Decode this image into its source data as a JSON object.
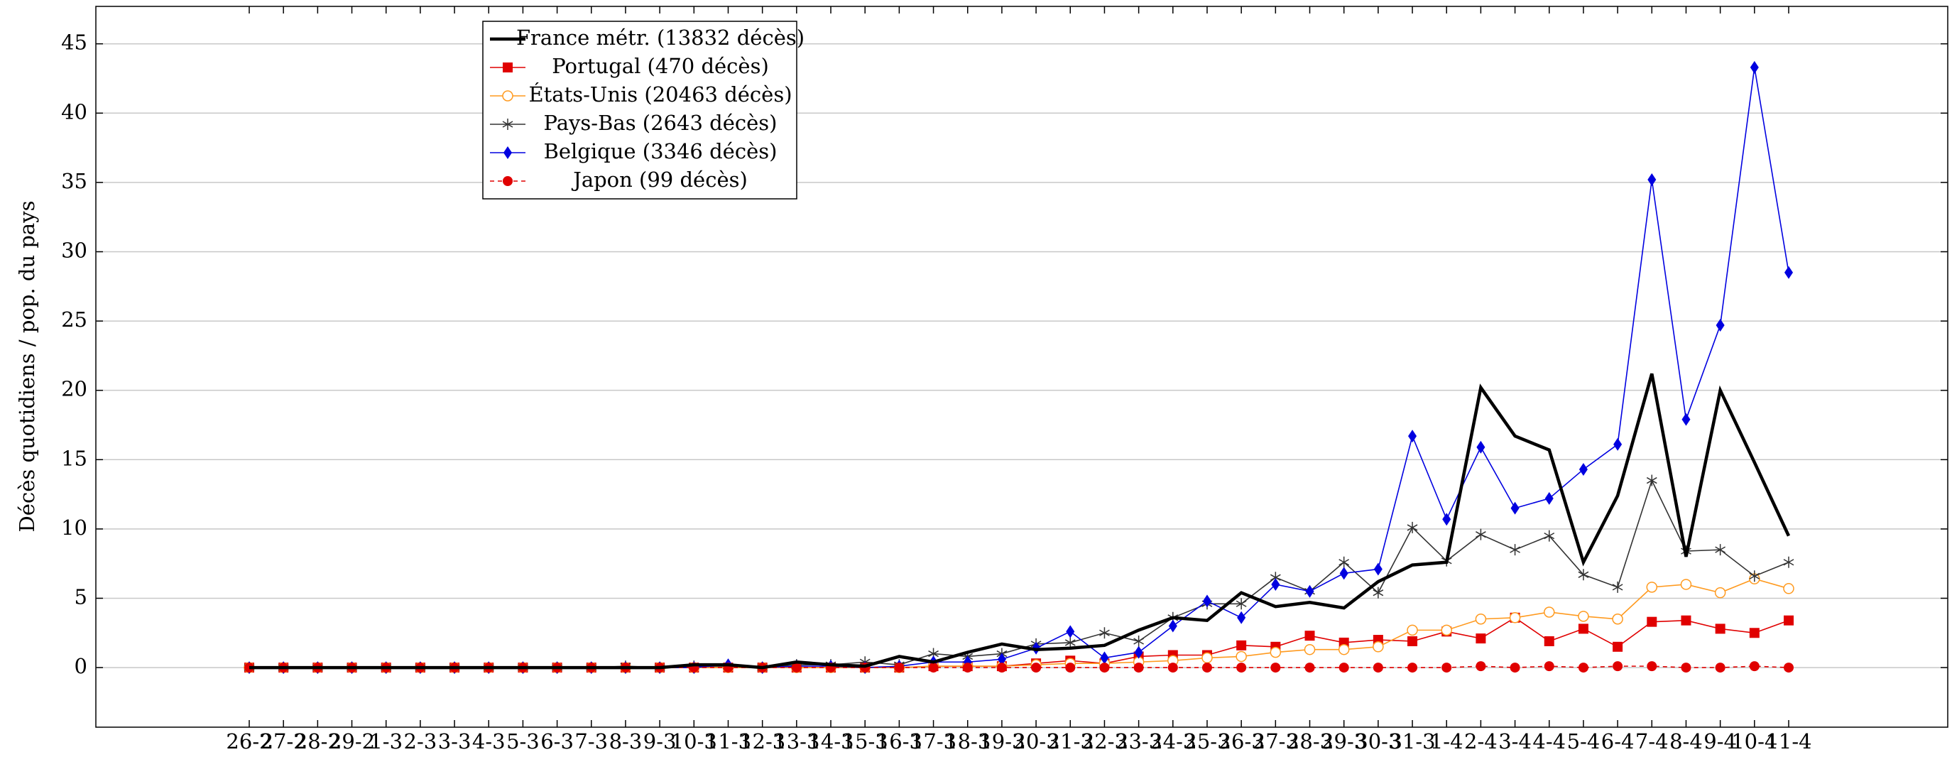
{
  "chart_data": {
    "type": "line",
    "y_label": "Décès quotidiens / pop. du pays",
    "categories": [
      "26-2",
      "27-2",
      "28-2",
      "29-2",
      "1-3",
      "2-3",
      "3-3",
      "4-3",
      "5-3",
      "6-3",
      "7-3",
      "8-3",
      "9-3",
      "10-3",
      "11-3",
      "12-3",
      "13-3",
      "14-3",
      "15-3",
      "16-3",
      "17-3",
      "18-3",
      "19-3",
      "20-3",
      "21-3",
      "22-3",
      "23-3",
      "24-3",
      "25-3",
      "26-3",
      "27-3",
      "28-3",
      "29-3",
      "30-3",
      "31-3",
      "1-4",
      "2-4",
      "3-4",
      "4-4",
      "5-4",
      "6-4",
      "7-4",
      "8-4",
      "9-4",
      "10-4",
      "11-4"
    ],
    "ylim": [
      -4.3,
      47.7
    ],
    "yticks": [
      0,
      5,
      10,
      15,
      20,
      25,
      30,
      35,
      40,
      45
    ],
    "grid": true,
    "legend": "upper-left",
    "series": [
      {
        "name": "France métr. (13832 décès)",
        "color": "#000000",
        "marker": "none",
        "values": [
          0,
          0,
          0,
          0,
          0,
          0,
          0,
          0,
          0,
          0,
          0,
          0,
          0,
          0.2,
          0.2,
          0,
          0.4,
          0.2,
          0.1,
          0.8,
          0.4,
          1.1,
          1.7,
          1.3,
          1.4,
          1.6,
          2.7,
          3.6,
          3.4,
          5.4,
          4.4,
          4.7,
          4.3,
          6.2,
          7.4,
          7.6,
          20.2,
          16.7,
          15.7,
          7.6,
          12.4,
          21.2,
          8.0,
          20.0,
          14.8,
          9.5
        ]
      },
      {
        "name": "Portugal (470 décès)",
        "color": "#e00000",
        "marker": "square",
        "values": [
          0,
          0,
          0,
          0,
          0,
          0,
          0,
          0,
          0,
          0,
          0,
          0,
          0,
          0,
          0,
          0,
          0,
          0,
          0,
          0,
          0.1,
          0.1,
          0.1,
          0.3,
          0.5,
          0.3,
          0.8,
          0.9,
          0.9,
          1.6,
          1.5,
          2.3,
          1.8,
          2.0,
          1.9,
          2.6,
          2.1,
          3.6,
          1.9,
          2.8,
          1.5,
          3.3,
          3.4,
          2.8,
          2.5,
          3.4
        ]
      },
      {
        "name": "États-Unis (20463 décès)",
        "color": "#ff9a1f",
        "marker": "circle-open",
        "values": [
          0,
          0,
          0,
          0,
          0,
          0,
          0,
          0,
          0,
          0,
          0,
          0,
          0,
          0,
          0,
          0,
          0,
          0,
          0,
          0,
          0.1,
          0.1,
          0.1,
          0.2,
          0.3,
          0.3,
          0.4,
          0.5,
          0.7,
          0.8,
          1.1,
          1.3,
          1.3,
          1.5,
          2.7,
          2.7,
          3.5,
          3.6,
          4.0,
          3.7,
          3.5,
          5.8,
          6.0,
          5.4,
          6.4,
          5.7
        ]
      },
      {
        "name": "Pays-Bas (2643 décès)",
        "color": "#333333",
        "marker": "star",
        "values": [
          0,
          0,
          0,
          0,
          0,
          0,
          0,
          0,
          0,
          0,
          0,
          0.1,
          0,
          0.1,
          0.1,
          0,
          0.2,
          0.2,
          0.4,
          0.2,
          1.0,
          0.8,
          1.0,
          1.7,
          1.8,
          2.5,
          1.9,
          3.6,
          4.6,
          4.6,
          6.5,
          5.5,
          7.6,
          5.4,
          10.1,
          7.7,
          9.6,
          8.5,
          9.5,
          6.7,
          5.8,
          13.5,
          8.4,
          8.5,
          6.6,
          7.6
        ]
      },
      {
        "name": "Belgique (3346 décès)",
        "color": "#0000e0",
        "marker": "diamond",
        "values": [
          0,
          0,
          0,
          0,
          0,
          0,
          0,
          0,
          0,
          0,
          0,
          0,
          0,
          0,
          0.2,
          0,
          0.1,
          0.1,
          0,
          0.1,
          0.4,
          0.4,
          0.6,
          1.4,
          2.6,
          0.7,
          1.1,
          3.0,
          4.8,
          3.6,
          6.0,
          5.5,
          6.8,
          7.1,
          16.7,
          10.7,
          15.9,
          11.5,
          12.2,
          14.3,
          16.1,
          35.2,
          17.9,
          24.7,
          43.3,
          28.5
        ]
      },
      {
        "name": "Japon (99 décès)",
        "color": "#e00000",
        "marker": "circle",
        "dashed": true,
        "values": [
          0,
          0,
          0,
          0,
          0,
          0,
          0,
          0,
          0,
          0,
          0,
          0,
          0,
          0,
          0,
          0,
          0,
          0,
          0,
          0,
          0,
          0,
          0,
          0,
          0,
          0,
          0,
          0,
          0,
          0,
          0,
          0,
          0,
          0,
          0,
          0,
          0.1,
          0,
          0.1,
          0,
          0.1,
          0.1,
          0,
          0,
          0.1,
          0
        ]
      }
    ]
  }
}
